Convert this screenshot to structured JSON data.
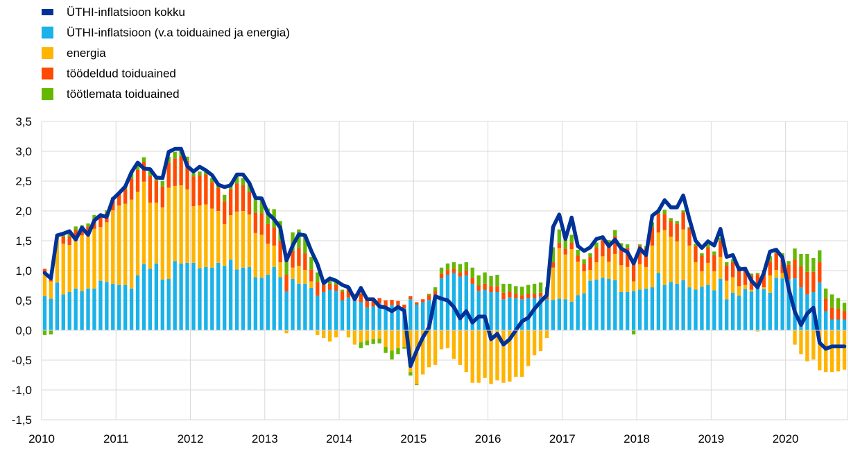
{
  "chart_data": {
    "type": "bar",
    "title": "",
    "xlabel": "",
    "ylabel": "",
    "ylim": [
      -1.5,
      3.5
    ],
    "y_ticks": [
      "3,5",
      "3,0",
      "2,5",
      "2,0",
      "1,5",
      "1,0",
      "0,5",
      "0,0",
      "-0,5",
      "-1,0",
      "-1,5"
    ],
    "x_tick_labels": [
      "2010",
      "2011",
      "2012",
      "2013",
      "2014",
      "2015",
      "2016",
      "2017",
      "2018",
      "2019",
      "2020"
    ],
    "x_start": "2010-01",
    "x_end": "2020-12",
    "frequency": "monthly",
    "grid": "horizontal and vertical",
    "legend_position": "top-left",
    "colors": {
      "total": "#003299",
      "core": "#1ab2e8",
      "energy": "#ffb400",
      "processed_food": "#ff4b00",
      "unprocessed_food": "#65b800"
    },
    "series": [
      {
        "name": "ÜTHI-inflatsioon kokku",
        "kind": "line",
        "color_key": "total",
        "values": [
          0.96,
          0.87,
          1.59,
          1.62,
          1.66,
          1.52,
          1.72,
          1.6,
          1.84,
          1.93,
          1.9,
          2.2,
          2.3,
          2.41,
          2.65,
          2.81,
          2.71,
          2.7,
          2.56,
          2.55,
          2.99,
          3.04,
          3.04,
          2.75,
          2.66,
          2.74,
          2.68,
          2.6,
          2.44,
          2.4,
          2.43,
          2.61,
          2.61,
          2.47,
          2.22,
          2.21,
          1.96,
          1.86,
          1.72,
          1.17,
          1.42,
          1.61,
          1.59,
          1.33,
          1.11,
          0.79,
          0.87,
          0.83,
          0.76,
          0.72,
          0.52,
          0.71,
          0.52,
          0.52,
          0.4,
          0.38,
          0.32,
          0.39,
          0.33,
          -0.6,
          -0.34,
          -0.12,
          0.05,
          0.57,
          0.53,
          0.5,
          0.39,
          0.2,
          0.32,
          0.13,
          0.23,
          0.23,
          -0.15,
          -0.06,
          -0.24,
          -0.15,
          0.0,
          0.15,
          0.21,
          0.36,
          0.48,
          0.59,
          1.73,
          1.94,
          1.53,
          1.89,
          1.41,
          1.33,
          1.39,
          1.53,
          1.56,
          1.41,
          1.52,
          1.37,
          1.31,
          1.12,
          1.37,
          1.26,
          1.92,
          2.0,
          2.18,
          2.06,
          2.06,
          2.26,
          1.86,
          1.5,
          1.38,
          1.49,
          1.42,
          1.7,
          1.23,
          1.26,
          1.02,
          1.03,
          0.83,
          0.72,
          0.96,
          1.32,
          1.35,
          1.22,
          0.7,
          0.31,
          0.09,
          0.28,
          0.38,
          -0.21,
          -0.31,
          -0.27,
          -0.27,
          -0.27
        ]
      },
      {
        "name": "ÜTHI-inflatsioon (v.a toiduained ja energia)",
        "kind": "bar",
        "color_key": "core",
        "values": [
          0.57,
          0.53,
          0.8,
          0.6,
          0.64,
          0.7,
          0.66,
          0.7,
          0.7,
          0.83,
          0.81,
          0.78,
          0.76,
          0.76,
          0.7,
          0.92,
          1.11,
          1.03,
          1.12,
          0.85,
          0.86,
          1.16,
          1.12,
          1.13,
          1.13,
          1.04,
          1.06,
          1.05,
          1.13,
          1.08,
          1.18,
          1.02,
          1.05,
          1.06,
          0.89,
          0.88,
          0.93,
          1.06,
          0.89,
          0.65,
          0.86,
          0.78,
          0.78,
          0.71,
          0.58,
          0.64,
          0.68,
          0.66,
          0.5,
          0.55,
          0.49,
          0.47,
          0.38,
          0.4,
          0.45,
          0.4,
          0.42,
          0.42,
          0.37,
          0.52,
          0.43,
          0.47,
          0.51,
          0.59,
          0.87,
          0.93,
          0.96,
          0.9,
          0.92,
          0.78,
          0.66,
          0.68,
          0.64,
          0.64,
          0.52,
          0.55,
          0.54,
          0.52,
          0.54,
          0.54,
          0.56,
          0.52,
          0.51,
          0.53,
          0.52,
          0.48,
          0.59,
          0.62,
          0.83,
          0.85,
          0.88,
          0.86,
          0.84,
          0.64,
          0.64,
          0.66,
          0.68,
          0.7,
          0.72,
          0.96,
          0.76,
          0.81,
          0.78,
          0.84,
          0.72,
          0.68,
          0.73,
          0.76,
          0.67,
          0.86,
          0.52,
          0.63,
          0.58,
          0.69,
          0.65,
          0.7,
          0.69,
          0.63,
          0.88,
          0.87,
          0.84,
          0.87,
          0.72,
          0.6,
          0.64,
          0.8,
          0.32,
          0.18,
          0.18,
          0.18
        ]
      },
      {
        "name": "energia",
        "kind": "bar",
        "color_key": "energy",
        "values": [
          0.38,
          0.29,
          0.78,
          0.85,
          0.79,
          0.8,
          0.93,
          0.9,
          1.0,
          0.9,
          1.0,
          1.23,
          1.33,
          1.36,
          1.49,
          1.4,
          1.38,
          1.11,
          1.02,
          1.21,
          1.53,
          1.26,
          1.31,
          1.23,
          0.95,
          1.05,
          1.05,
          0.99,
          0.87,
          0.7,
          0.75,
          0.97,
          0.95,
          0.88,
          0.74,
          0.72,
          0.52,
          0.36,
          0.25,
          -0.05,
          0.19,
          0.3,
          0.23,
          0.11,
          -0.08,
          -0.13,
          -0.19,
          -0.12,
          -0.01,
          -0.12,
          -0.24,
          -0.2,
          -0.17,
          -0.15,
          -0.14,
          -0.28,
          -0.34,
          -0.3,
          -0.28,
          -0.7,
          -0.9,
          -0.74,
          -0.62,
          -0.58,
          -0.32,
          -0.3,
          -0.48,
          -0.58,
          -0.7,
          -0.88,
          -0.88,
          -0.8,
          -0.9,
          -0.84,
          -0.88,
          -0.86,
          -0.78,
          -0.78,
          -0.6,
          -0.42,
          -0.35,
          -0.13,
          0.54,
          0.85,
          0.75,
          0.88,
          0.56,
          0.37,
          0.18,
          0.29,
          0.36,
          0.29,
          0.44,
          0.45,
          0.42,
          0.16,
          0.43,
          0.36,
          0.7,
          0.68,
          0.92,
          0.76,
          0.71,
          0.85,
          0.7,
          0.46,
          0.26,
          0.37,
          0.32,
          0.37,
          0.31,
          0.26,
          0.16,
          0.07,
          0.03,
          -0.02,
          0.03,
          0.29,
          0.13,
          0.09,
          0.01,
          -0.24,
          -0.4,
          -0.52,
          -0.49,
          -0.67,
          -0.7,
          -0.7,
          -0.69,
          -0.66
        ]
      },
      {
        "name": "töödeldud toiduained",
        "kind": "bar",
        "color_key": "processed_food",
        "values": [
          0.08,
          0.03,
          0.0,
          0.12,
          0.14,
          0.18,
          0.12,
          0.14,
          0.17,
          0.17,
          0.16,
          0.18,
          0.19,
          0.25,
          0.35,
          0.37,
          0.33,
          0.45,
          0.37,
          0.35,
          0.42,
          0.46,
          0.49,
          0.48,
          0.5,
          0.51,
          0.5,
          0.44,
          0.39,
          0.38,
          0.43,
          0.47,
          0.43,
          0.38,
          0.34,
          0.36,
          0.33,
          0.3,
          0.36,
          0.28,
          0.28,
          0.3,
          0.28,
          0.2,
          0.23,
          0.12,
          0.1,
          0.1,
          0.15,
          0.13,
          0.12,
          0.15,
          0.12,
          0.1,
          0.09,
          0.1,
          0.09,
          0.07,
          0.06,
          0.05,
          0.04,
          0.05,
          0.08,
          0.07,
          0.08,
          0.08,
          0.07,
          0.07,
          0.08,
          0.1,
          0.09,
          0.1,
          0.1,
          0.1,
          0.11,
          0.1,
          0.07,
          0.07,
          0.07,
          0.07,
          0.07,
          0.07,
          0.09,
          0.08,
          0.1,
          0.11,
          0.1,
          0.12,
          0.22,
          0.25,
          0.27,
          0.28,
          0.3,
          0.3,
          0.32,
          0.35,
          0.31,
          0.32,
          0.3,
          0.31,
          0.27,
          0.26,
          0.29,
          0.28,
          0.29,
          0.27,
          0.26,
          0.26,
          0.27,
          0.27,
          0.26,
          0.25,
          0.28,
          0.25,
          0.24,
          0.24,
          0.25,
          0.24,
          0.28,
          0.29,
          0.25,
          0.32,
          0.35,
          0.38,
          0.34,
          0.34,
          0.21,
          0.2,
          0.18,
          0.14
        ]
      },
      {
        "name": "töötlemata toiduained",
        "kind": "bar",
        "color_key": "unprocessed_food",
        "values": [
          -0.08,
          -0.07,
          0.0,
          0.03,
          0.05,
          0.06,
          0.05,
          0.05,
          0.06,
          0.04,
          0.04,
          0.04,
          0.04,
          0.06,
          0.09,
          0.09,
          0.08,
          0.08,
          0.07,
          0.09,
          0.1,
          0.11,
          0.09,
          0.07,
          0.05,
          0.06,
          0.05,
          0.07,
          0.08,
          0.11,
          0.11,
          0.13,
          0.12,
          0.16,
          0.23,
          0.25,
          0.26,
          0.31,
          0.33,
          0.25,
          0.31,
          0.31,
          0.29,
          0.21,
          0.16,
          0.03,
          0.05,
          0.05,
          0.03,
          0.03,
          0.0,
          -0.1,
          -0.08,
          -0.08,
          -0.08,
          -0.1,
          -0.15,
          -0.1,
          -0.03,
          -0.06,
          -0.02,
          0.0,
          0.02,
          0.06,
          0.1,
          0.11,
          0.11,
          0.14,
          0.14,
          0.17,
          0.17,
          0.19,
          0.17,
          0.19,
          0.15,
          0.13,
          0.13,
          0.14,
          0.15,
          0.17,
          0.17,
          0.13,
          0.25,
          0.23,
          0.15,
          0.13,
          0.1,
          0.08,
          0.06,
          0.08,
          0.07,
          0.08,
          0.1,
          0.07,
          0.06,
          -0.07,
          0.02,
          0.03,
          0.09,
          0.07,
          0.07,
          0.05,
          0.05,
          0.04,
          0.02,
          0.04,
          0.04,
          0.05,
          0.06,
          0.05,
          0.05,
          0.05,
          0.06,
          0.05,
          0.03,
          0.02,
          0.04,
          0.08,
          0.05,
          0.04,
          0.06,
          0.18,
          0.21,
          0.3,
          0.23,
          0.2,
          0.17,
          0.22,
          0.18,
          0.14
        ]
      }
    ]
  }
}
